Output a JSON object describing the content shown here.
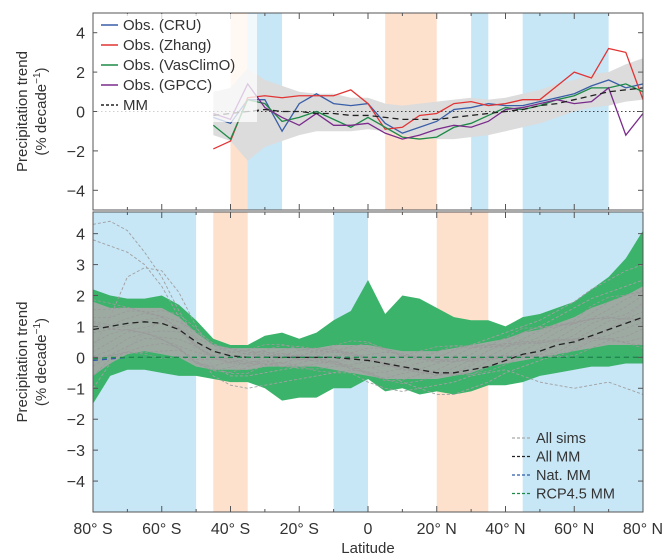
{
  "chart_data": [
    {
      "type": "line",
      "panel": "top",
      "ylabel_line1": "Precipitation trend",
      "ylabel_line2": "(% decade",
      "ylabel_sup": "−1",
      "ylabel_close": ")",
      "xlim": [
        -80,
        80
      ],
      "ylim": [
        -5,
        5
      ],
      "yticks": [
        4,
        2,
        0,
        -2,
        -4
      ],
      "ytick_labels": [
        "4",
        "2",
        "0",
        "−2",
        "−4"
      ],
      "zero_line": "dotted",
      "legend_placement": "top-left",
      "highlight_bands": [
        {
          "color": "#c7e6f6",
          "from": -36,
          "to": -25
        },
        {
          "color": "#c7e6f6",
          "from": 30,
          "to": 35
        },
        {
          "color": "#c7e6f6",
          "from": 45,
          "to": 70
        },
        {
          "color": "#fde1cd",
          "from": -40,
          "to": -35
        },
        {
          "color": "#fde1cd",
          "from": 5,
          "to": 20
        }
      ],
      "x": [
        -45,
        -40,
        -35,
        -30,
        -25,
        -20,
        -15,
        -10,
        -5,
        0,
        5,
        10,
        15,
        20,
        25,
        30,
        35,
        40,
        45,
        50,
        55,
        60,
        65,
        70,
        75,
        80
      ],
      "envelope": {
        "color": "#dcdcdc",
        "upper": [
          1.0,
          1.2,
          2.2,
          1.6,
          1.3,
          1.0,
          0.9,
          0.9,
          0.7,
          0.7,
          0.4,
          0.3,
          0.4,
          0.5,
          0.6,
          0.7,
          0.6,
          0.7,
          0.9,
          1.1,
          1.4,
          1.6,
          1.9,
          2.0,
          2.4,
          2.7
        ],
        "lower": [
          -1.2,
          -1.5,
          -2.5,
          -1.8,
          -1.5,
          -1.2,
          -1.0,
          -1.0,
          -1.0,
          -0.9,
          -1.0,
          -1.2,
          -1.3,
          -1.4,
          -1.4,
          -1.3,
          -1.2,
          -1.0,
          -0.8,
          -0.6,
          -0.3,
          0.0,
          0.2,
          0.3,
          0.5,
          0.6
        ]
      },
      "series": [
        {
          "name": "Obs. (CRU)",
          "color": "#3a5fa8",
          "dash": "none",
          "values": [
            -0.3,
            -0.6,
            0.6,
            0.6,
            -1.0,
            0.4,
            0.9,
            0.4,
            0.3,
            0.4,
            -0.6,
            -1.1,
            -0.8,
            -0.5,
            0.1,
            0.2,
            0.4,
            0.3,
            0.3,
            0.5,
            0.7,
            0.9,
            1.3,
            1.6,
            1.2,
            1.4
          ]
        },
        {
          "name": "Obs. (Zhang)",
          "color": "#e23434",
          "dash": "none",
          "values": [
            -1.9,
            -1.5,
            0.7,
            0.8,
            0.7,
            0.8,
            0.8,
            0.8,
            1.1,
            0.4,
            -0.9,
            -0.8,
            -0.2,
            -0.1,
            0.4,
            0.5,
            0.3,
            0.4,
            0.6,
            0.6,
            1.3,
            2.0,
            1.7,
            3.2,
            3.0,
            0.6
          ]
        },
        {
          "name": "Obs. (VasClimO)",
          "color": "#1d8a47",
          "dash": "none",
          "values": [
            -0.7,
            -1.4,
            0.6,
            0.4,
            -0.5,
            -0.3,
            0.0,
            -0.4,
            -0.8,
            -0.3,
            -0.8,
            -1.3,
            -1.4,
            -1.3,
            -0.8,
            -0.6,
            -0.2,
            0.2,
            0.1,
            0.3,
            0.6,
            0.8,
            1.2,
            1.2,
            1.4,
            1.0
          ]
        },
        {
          "name": "Obs. (GPCC)",
          "color": "#7a2b8c",
          "dash": "none",
          "values": [
            -0.1,
            -0.4,
            1.4,
            0.2,
            -0.3,
            -0.7,
            -0.1,
            -0.7,
            -0.7,
            -0.6,
            -1.1,
            -1.4,
            -1.2,
            -0.9,
            -0.7,
            -0.8,
            -0.5,
            0.1,
            0.2,
            0.4,
            0.6,
            0.4,
            0.5,
            1.2,
            -1.2,
            -0.1
          ]
        },
        {
          "name": "MM",
          "color": "#222222",
          "dash": "6,4",
          "values": [
            -0.2,
            -0.1,
            0.0,
            0.1,
            0.0,
            0.0,
            -0.1,
            -0.1,
            -0.2,
            -0.2,
            -0.3,
            -0.4,
            -0.4,
            -0.4,
            -0.3,
            -0.2,
            -0.1,
            0.0,
            0.1,
            0.3,
            0.4,
            0.6,
            0.8,
            1.0,
            1.1,
            1.2
          ]
        }
      ]
    },
    {
      "type": "line",
      "panel": "bottom",
      "ylabel_line1": "Precipitation trend",
      "ylabel_line2": "(% decade",
      "ylabel_sup": "−1",
      "ylabel_close": ")",
      "xlabel": "Latitude",
      "xlim": [
        -80,
        80
      ],
      "ylim": [
        -5,
        4.7
      ],
      "yticks": [
        4,
        3,
        2,
        1,
        0,
        -1,
        -2,
        -3,
        -4
      ],
      "ytick_labels": [
        "4",
        "3",
        "2",
        "1",
        "0",
        "−1",
        "−2",
        "−3",
        "−4"
      ],
      "xticks": [
        -80,
        -60,
        -40,
        -20,
        0,
        20,
        40,
        60,
        80
      ],
      "xtick_labels": [
        "80° S",
        "60° S",
        "40° S",
        "20° S",
        "0",
        "20° N",
        "40° N",
        "60° N",
        "80° N"
      ],
      "legend_placement": "bottom-right",
      "highlight_bands": [
        {
          "color": "#c7e6f6",
          "from": -80,
          "to": -50
        },
        {
          "color": "#c7e6f6",
          "from": -10,
          "to": 0
        },
        {
          "color": "#c7e6f6",
          "from": 45,
          "to": 80
        },
        {
          "color": "#fde1cd",
          "from": -45,
          "to": -35
        },
        {
          "color": "#fde1cd",
          "from": 20,
          "to": 35
        }
      ],
      "x": [
        -80,
        -75,
        -70,
        -65,
        -60,
        -55,
        -50,
        -45,
        -40,
        -35,
        -30,
        -25,
        -20,
        -15,
        -10,
        -5,
        0,
        5,
        10,
        15,
        20,
        25,
        30,
        35,
        40,
        45,
        50,
        55,
        60,
        65,
        70,
        75,
        80
      ],
      "envelope": {
        "color": "#3bb36a",
        "upper": [
          2.2,
          2.0,
          1.9,
          1.9,
          2.0,
          1.7,
          1.2,
          0.6,
          0.4,
          0.4,
          0.7,
          0.8,
          0.6,
          0.8,
          1.2,
          1.5,
          2.5,
          1.4,
          2.0,
          1.9,
          1.6,
          1.3,
          1.2,
          1.2,
          1.0,
          1.3,
          1.4,
          1.6,
          1.8,
          2.2,
          2.6,
          3.2,
          4.1
        ],
        "lower": [
          -1.5,
          -0.6,
          -0.4,
          -0.4,
          -0.5,
          -0.6,
          -0.6,
          -0.7,
          -0.8,
          -0.8,
          -1.0,
          -1.4,
          -1.3,
          -1.3,
          -1.0,
          -1.0,
          -0.7,
          -1.1,
          -1.0,
          -1.2,
          -1.1,
          -1.2,
          -1.1,
          -0.9,
          -0.9,
          -0.8,
          -0.6,
          -0.5,
          -0.4,
          -0.3,
          -0.3,
          -0.2,
          -0.2
        ]
      },
      "grey_band": {
        "color": "#a9a9a9",
        "upper": [
          1.8,
          1.6,
          1.6,
          1.6,
          1.6,
          1.3,
          0.8,
          0.4,
          0.3,
          0.3,
          0.3,
          0.3,
          0.3,
          0.3,
          0.4,
          0.4,
          0.4,
          0.3,
          0.2,
          0.2,
          0.2,
          0.3,
          0.4,
          0.5,
          0.6,
          0.8,
          0.9,
          1.1,
          1.3,
          1.6,
          1.8,
          2.0,
          2.3
        ],
        "lower": [
          -0.6,
          -0.2,
          0.1,
          0.2,
          0.1,
          0.0,
          -0.3,
          -0.4,
          -0.4,
          -0.4,
          -0.3,
          -0.3,
          -0.3,
          -0.3,
          -0.4,
          -0.5,
          -0.6,
          -0.7,
          -0.7,
          -0.7,
          -0.7,
          -0.6,
          -0.5,
          -0.3,
          -0.2,
          -0.1,
          0.0,
          0.1,
          0.2,
          0.3,
          0.4,
          0.4,
          0.4
        ]
      },
      "outliers": [
        {
          "values": [
            4.3,
            4.4,
            4.1,
            3.4,
            2.6,
            1.5,
            0.6,
            0.0,
            -0.2,
            -0.3,
            -0.1,
            0.0,
            0.1,
            0.1,
            0.2,
            0.3,
            0.2,
            0.0,
            -0.2,
            -0.4,
            -0.5,
            -0.5,
            -0.2,
            0.2,
            0.5,
            0.8,
            1.0,
            1.3,
            1.6,
            1.9,
            2.1,
            2.3,
            2.5
          ]
        },
        {
          "values": [
            3.8,
            3.6,
            3.4,
            3.0,
            2.3,
            1.3,
            0.4,
            -0.3,
            -0.6,
            -0.6,
            -0.5,
            -0.4,
            -0.3,
            -0.2,
            -0.2,
            -0.1,
            -0.3,
            -0.5,
            -0.8,
            -1.0,
            -1.2,
            -1.2,
            -1.0,
            -0.8,
            -0.5,
            -0.3,
            -0.1,
            0.1,
            0.3,
            0.6,
            0.9,
            1.3,
            1.7
          ]
        },
        {
          "values": [
            -1.0,
            -0.2,
            0.3,
            0.8,
            1.2,
            1.0,
            0.2,
            -0.6,
            -0.9,
            -1.0,
            -0.9,
            -0.8,
            -0.7,
            -0.6,
            -0.5,
            -0.5,
            -0.8,
            -1.0,
            -1.1,
            -1.0,
            -0.9,
            -0.8,
            -0.6,
            -0.5,
            -0.4,
            -0.6,
            -0.8,
            -0.9,
            -1.0,
            -0.9,
            -0.8,
            -1.0,
            -1.2
          ]
        },
        {
          "values": [
            0.3,
            1.3,
            2.6,
            2.9,
            2.8,
            2.1,
            1.0,
            0.1,
            -0.3,
            -0.4,
            -0.3,
            -0.2,
            -0.1,
            0.0,
            0.0,
            0.1,
            0.0,
            -0.2,
            -0.3,
            -0.2,
            0.0,
            0.2,
            0.4,
            0.6,
            0.8,
            1.0,
            1.2,
            1.5,
            1.8,
            2.2,
            2.5,
            2.8,
            3.0
          ]
        }
      ],
      "legend": [
        {
          "label": "All sims",
          "color": "#a9a9a9"
        },
        {
          "label": "All MM",
          "color": "#222222"
        },
        {
          "label": "Nat. MM",
          "color": "#2e5aa8"
        },
        {
          "label": "RCP4.5 MM",
          "color": "#1d8a47"
        }
      ],
      "series": [
        {
          "name": "All MM",
          "color": "#222222",
          "dash": "6,4",
          "values": [
            0.9,
            1.0,
            1.1,
            1.15,
            1.1,
            0.9,
            0.5,
            0.2,
            0.05,
            0.0,
            0.0,
            0.0,
            0.0,
            0.0,
            0.0,
            -0.05,
            -0.1,
            -0.2,
            -0.3,
            -0.4,
            -0.5,
            -0.5,
            -0.4,
            -0.3,
            -0.1,
            0.1,
            0.2,
            0.4,
            0.5,
            0.7,
            0.9,
            1.1,
            1.3
          ]
        },
        {
          "name": "Nat. MM",
          "color": "#2e5aa8",
          "dash": "5,4",
          "values": [
            -0.1,
            -0.05,
            0.0,
            0.0,
            0.0,
            0.0,
            0.0,
            0.0,
            0.0,
            0.0,
            0.0,
            0.0,
            0.0,
            0.0,
            0.0,
            0.0,
            0.0,
            0.0,
            0.0,
            0.0,
            0.0,
            0.0,
            0.0,
            0.0,
            0.0,
            0.0,
            0.0,
            0.0,
            0.0,
            0.0,
            0.0,
            0.0,
            0.0
          ]
        },
        {
          "name": "RCP4.5 MM",
          "color": "#1d8a47",
          "dash": "5,4",
          "values": [
            -0.05,
            0.0,
            0.0,
            0.0,
            0.0,
            0.0,
            0.0,
            0.0,
            0.0,
            0.0,
            0.0,
            0.0,
            0.0,
            0.0,
            0.0,
            0.0,
            0.0,
            0.0,
            0.0,
            0.0,
            0.0,
            0.0,
            0.0,
            0.0,
            0.0,
            0.0,
            0.0,
            0.0,
            0.0,
            0.0,
            0.0,
            0.0,
            0.0
          ]
        }
      ]
    }
  ]
}
